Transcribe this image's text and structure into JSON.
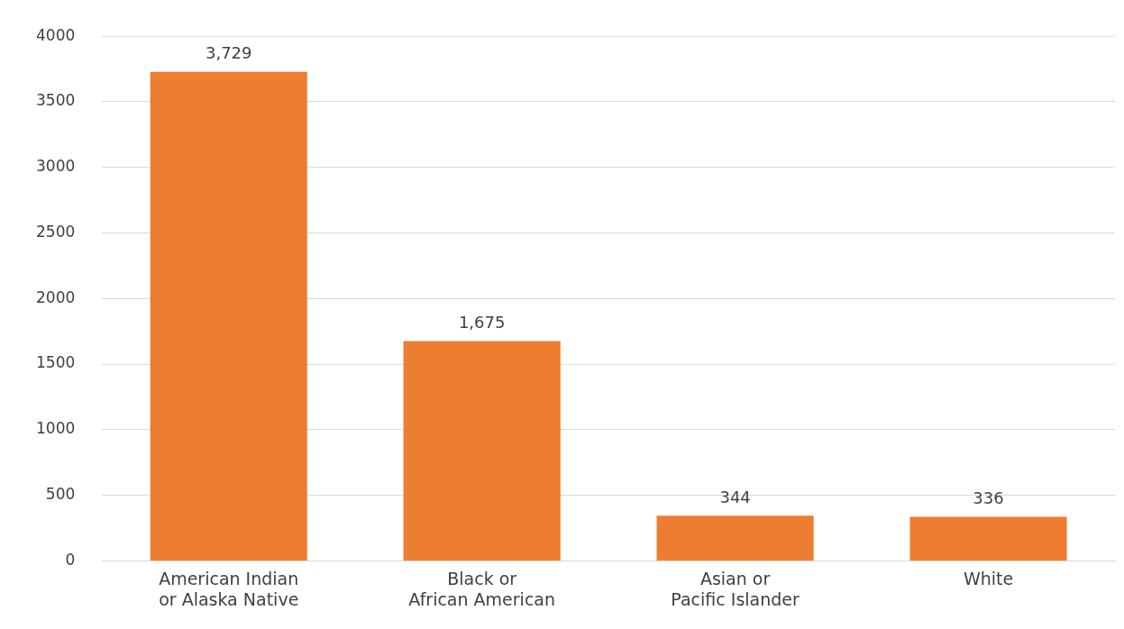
{
  "chart_data": {
    "type": "bar",
    "categories": [
      "American Indian or Alaska Native",
      "Black or African American",
      "Asian or Pacific Islander",
      "White"
    ],
    "values": [
      3729,
      1675,
      344,
      336
    ],
    "value_labels": [
      "3,729",
      "1,675",
      "344",
      "336"
    ],
    "color": "#ed7d31",
    "ylim": [
      0,
      4000
    ],
    "yticks": [
      0,
      500,
      1000,
      1500,
      2000,
      2500,
      3000,
      3500,
      4000
    ],
    "grid": "y"
  }
}
